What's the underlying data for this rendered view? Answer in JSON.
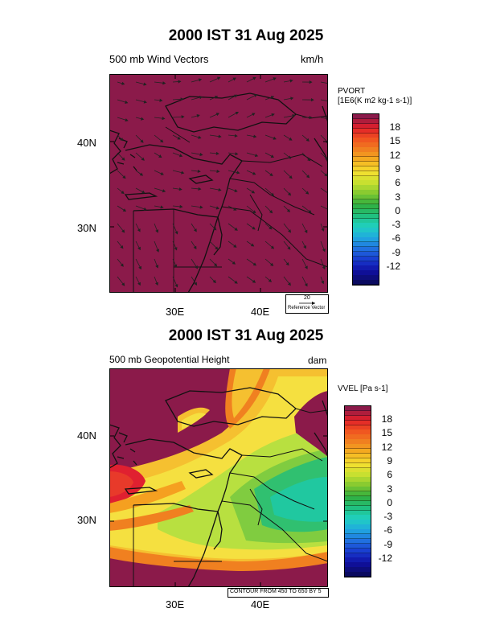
{
  "panels": [
    {
      "title": "2000 IST 31 Aug 2025",
      "subtitle": "500 mb Wind Vectors",
      "units": "km/h",
      "field_label_line1": "PVORT",
      "field_label_line2": "[1E6(K m2 kg-1 s-1)]",
      "reference_value": "20",
      "reference_label": "Reference Vector",
      "lat_labels": [
        "40N",
        "30N"
      ],
      "lon_labels": [
        "30E",
        "40E"
      ],
      "colorbar_labels": [
        "18",
        "15",
        "12",
        "9",
        "6",
        "3",
        "0",
        "-3",
        "-6",
        "-9",
        "-12"
      ]
    },
    {
      "title": "2000 IST 31 Aug 2025",
      "subtitle": "500 mb Geopotential Height",
      "units": "dam",
      "field_label_line1": "VVEL [Pa s-1]",
      "contour_note": "CONTOUR FROM 450 TO 650 BY 5",
      "lat_labels": [
        "40N",
        "30N"
      ],
      "lon_labels": [
        "30E",
        "40E"
      ],
      "colorbar_labels": [
        "18",
        "15",
        "12",
        "9",
        "6",
        "3",
        "0",
        "-3",
        "-6",
        "-9",
        "-12"
      ]
    }
  ],
  "colors": {
    "background_field": "#8b1a4a",
    "coast": "#111111",
    "colorbar_stops": [
      "#8b1a4a",
      "#e0202a",
      "#f05020",
      "#f08020",
      "#f5b020",
      "#f5e030",
      "#c8e030",
      "#80c830",
      "#30b040",
      "#20c080",
      "#20d0c0",
      "#20a8e0",
      "#2070e0",
      "#1838d0",
      "#1010a0",
      "#0a0a60"
    ]
  },
  "wind_field": {
    "grid_lon": [
      24,
      26,
      28,
      30,
      32,
      34,
      36,
      38,
      40,
      42,
      44,
      46
    ],
    "grid_lat": [
      46,
      44,
      42,
      40,
      38,
      36,
      34,
      32,
      30,
      28,
      26,
      24
    ],
    "direction": "northwest-to-southeast"
  }
}
